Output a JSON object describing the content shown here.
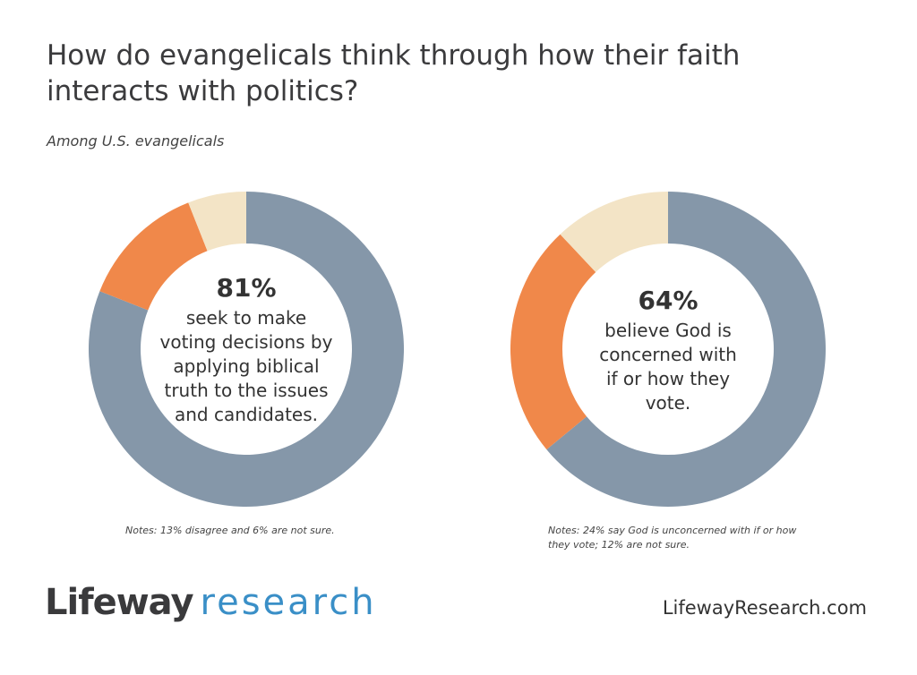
{
  "title": "How do evangelicals think through how their faith interacts with politics?",
  "subtitle": "Among U.S. evangelicals",
  "colors": {
    "agree": "#8597a9",
    "disagree": "#f0884a",
    "not_sure": "#f3e4c6"
  },
  "chart_data": [
    {
      "type": "pie",
      "variant": "donut",
      "slices": [
        {
          "label": "agree",
          "value": 81
        },
        {
          "label": "disagree",
          "value": 13
        },
        {
          "label": "not sure",
          "value": 6
        }
      ],
      "center_value": "81%",
      "center_text": "seek to make voting decisions by applying biblical truth to the issues and candidates.",
      "note": "Notes: 13% disagree and 6% are not sure."
    },
    {
      "type": "pie",
      "variant": "donut",
      "slices": [
        {
          "label": "God is concerned",
          "value": 64
        },
        {
          "label": "God is unconcerned",
          "value": 24
        },
        {
          "label": "not sure",
          "value": 12
        }
      ],
      "center_value": "64%",
      "center_text": "believe God is concerned with if or how they vote.",
      "note": "Notes: 24% say God is unconcerned with if or how they vote; 12% are not sure."
    }
  ],
  "footer": {
    "logo_part1": "Lifeway",
    "logo_part2": "research",
    "url": "LifewayResearch.com"
  }
}
